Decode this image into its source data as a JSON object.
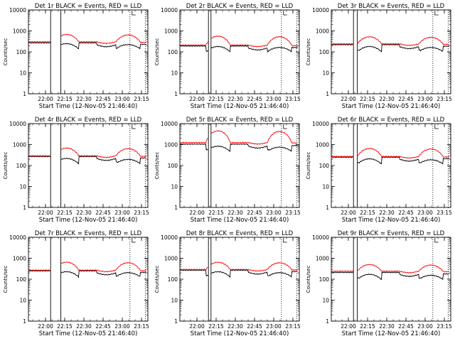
{
  "figure": {
    "background": "#ffffff",
    "event_color": "#000000",
    "lld_color": "#ff0000",
    "xlabel": "Start Time (12-Nov-05 21:46:40)",
    "ylabel": "Counts/sec"
  },
  "chart_data": [
    {
      "type": "line",
      "title": "Det 1r BLACK = Events, RED = LLD",
      "xlabel": "Start Time (12-Nov-05 21:46:40)",
      "ylabel": "Counts/sec",
      "yscale": "log",
      "ylim": [
        1,
        10000
      ],
      "xlim": [
        "21:46:40",
        "23:20:00"
      ],
      "x_ticks": [
        "22:00",
        "22:15",
        "22:30",
        "22:45",
        "23:00",
        "23:15"
      ],
      "y_ticks": [
        "1",
        "10",
        "100",
        "1000",
        "10000"
      ],
      "grid": false,
      "vlines_solid": [
        "22:04",
        "22:12"
      ],
      "vlines_dotted": [
        "23:06",
        "23:18"
      ],
      "series": [
        {
          "name": "BLACK = Events",
          "color": "#000000",
          "baseline": 270,
          "peak": 260
        },
        {
          "name": "RED = LLD",
          "color": "#ff0000",
          "baseline": 300,
          "peak": 680
        }
      ]
    },
    {
      "type": "line",
      "title": "Det 2r BLACK = Events, RED = LLD",
      "xlabel": "Start Time (12-Nov-05 21:46:40)",
      "ylabel": "Counts/sec",
      "yscale": "log",
      "ylim": [
        1,
        10000
      ],
      "xlim": [
        "21:46:40",
        "23:20:00"
      ],
      "x_ticks": [
        "22:00",
        "22:15",
        "22:30",
        "22:45",
        "23:00",
        "23:15"
      ],
      "y_ticks": [
        "1",
        "10",
        "100",
        "1000",
        "10000"
      ],
      "grid": false,
      "vlines_solid": [
        "22:09",
        "22:11"
      ],
      "vlines_dotted": [
        "23:06",
        "23:18"
      ],
      "series": [
        {
          "name": "BLACK = Events",
          "color": "#000000",
          "baseline": 190,
          "peak": 190
        },
        {
          "name": "RED = LLD",
          "color": "#ff0000",
          "baseline": 210,
          "peak": 560
        }
      ]
    },
    {
      "type": "line",
      "title": "Det 3r BLACK = Events, RED = LLD",
      "xlabel": "Start Time (12-Nov-05 21:46:40)",
      "ylabel": "Counts/sec",
      "yscale": "log",
      "ylim": [
        1,
        10000
      ],
      "xlim": [
        "21:46:40",
        "23:20:00"
      ],
      "x_ticks": [
        "22:00",
        "22:15",
        "22:30",
        "22:45",
        "23:00",
        "23:15"
      ],
      "y_ticks": [
        "1",
        "10",
        "100",
        "1000",
        "10000"
      ],
      "grid": false,
      "vlines_solid": [
        "22:04",
        "22:07"
      ],
      "vlines_dotted": [
        "23:06",
        "23:18"
      ],
      "series": [
        {
          "name": "BLACK = Events",
          "color": "#000000",
          "baseline": 220,
          "peak": 190
        },
        {
          "name": "RED = LLD",
          "color": "#ff0000",
          "baseline": 240,
          "peak": 520
        }
      ]
    },
    {
      "type": "line",
      "title": "Det 4r BLACK = Events, RED = LLD",
      "xlabel": "Start Time (12-Nov-05 21:46:40)",
      "ylabel": "Counts/sec",
      "yscale": "log",
      "ylim": [
        1,
        10000
      ],
      "xlim": [
        "21:46:40",
        "23:20:00"
      ],
      "x_ticks": [
        "22:00",
        "22:15",
        "22:30",
        "22:45",
        "23:00",
        "23:15"
      ],
      "y_ticks": [
        "1",
        "10",
        "100",
        "1000",
        "10000"
      ],
      "grid": false,
      "vlines_solid": [
        "22:04",
        "22:12"
      ],
      "vlines_dotted": [
        "23:06",
        "23:18"
      ],
      "series": [
        {
          "name": "BLACK = Events",
          "color": "#000000",
          "baseline": 270,
          "peak": 230
        },
        {
          "name": "RED = LLD",
          "color": "#ff0000",
          "baseline": 290,
          "peak": 680
        }
      ]
    },
    {
      "type": "line",
      "title": "Det 5r BLACK = Events, RED = LLD",
      "xlabel": "Start Time (12-Nov-05 21:46:40)",
      "ylabel": "Counts/sec",
      "yscale": "log",
      "ylim": [
        1,
        10000
      ],
      "xlim": [
        "21:46:40",
        "23:20:00"
      ],
      "x_ticks": [
        "22:00",
        "22:15",
        "22:30",
        "22:45",
        "23:00",
        "23:15"
      ],
      "y_ticks": [
        "1",
        "10",
        "100",
        "1000",
        "10000"
      ],
      "grid": false,
      "vlines_solid": [
        "22:09",
        "22:11"
      ],
      "vlines_dotted": [
        "23:06",
        "23:18"
      ],
      "series": [
        {
          "name": "BLACK = Events",
          "color": "#000000",
          "baseline": 1050,
          "peak": 880
        },
        {
          "name": "RED = LLD",
          "color": "#ff0000",
          "baseline": 1250,
          "peak": 4500
        }
      ]
    },
    {
      "type": "line",
      "title": "Det 6r BLACK = Events, RED = LLD",
      "xlabel": "Start Time (12-Nov-05 21:46:40)",
      "ylabel": "Counts/sec",
      "yscale": "log",
      "ylim": [
        1,
        10000
      ],
      "xlim": [
        "21:46:40",
        "23:20:00"
      ],
      "x_ticks": [
        "22:00",
        "22:15",
        "22:30",
        "22:45",
        "23:00",
        "23:15"
      ],
      "y_ticks": [
        "1",
        "10",
        "100",
        "1000",
        "10000"
      ],
      "grid": false,
      "vlines_solid": [
        "22:04",
        "22:07"
      ],
      "vlines_dotted": [
        "23:06",
        "23:18"
      ],
      "series": [
        {
          "name": "BLACK = Events",
          "color": "#000000",
          "baseline": 250,
          "peak": 220
        },
        {
          "name": "RED = LLD",
          "color": "#ff0000",
          "baseline": 270,
          "peak": 650
        }
      ]
    },
    {
      "type": "line",
      "title": "Det 7r BLACK = Events, RED = LLD",
      "xlabel": "Start Time (12-Nov-05 21:46:40)",
      "ylabel": "Counts/sec",
      "yscale": "log",
      "ylim": [
        1,
        10000
      ],
      "xlim": [
        "21:46:40",
        "23:20:00"
      ],
      "x_ticks": [
        "22:00",
        "22:15",
        "22:30",
        "22:45",
        "23:00",
        "23:15"
      ],
      "y_ticks": [
        "1",
        "10",
        "100",
        "1000",
        "10000"
      ],
      "grid": false,
      "vlines_solid": [
        "22:04",
        "22:12"
      ],
      "vlines_dotted": [
        "23:06",
        "23:18"
      ],
      "series": [
        {
          "name": "BLACK = Events",
          "color": "#000000",
          "baseline": 250,
          "peak": 240
        },
        {
          "name": "RED = LLD",
          "color": "#ff0000",
          "baseline": 270,
          "peak": 650
        }
      ]
    },
    {
      "type": "line",
      "title": "Det 8r BLACK = Events, RED = LLD",
      "xlabel": "Start Time (12-Nov-05 21:46:40)",
      "ylabel": "Counts/sec",
      "yscale": "log",
      "ylim": [
        1,
        10000
      ],
      "xlim": [
        "21:46:40",
        "23:20:00"
      ],
      "x_ticks": [
        "22:00",
        "22:15",
        "22:30",
        "22:45",
        "23:00",
        "23:15"
      ],
      "y_ticks": [
        "1",
        "10",
        "100",
        "1000",
        "10000"
      ],
      "grid": false,
      "vlines_solid": [
        "22:09",
        "22:11"
      ],
      "vlines_dotted": [
        "23:06",
        "23:18"
      ],
      "series": [
        {
          "name": "BLACK = Events",
          "color": "#000000",
          "baseline": 270,
          "peak": 240
        },
        {
          "name": "RED = LLD",
          "color": "#ff0000",
          "baseline": 290,
          "peak": 640
        }
      ]
    },
    {
      "type": "line",
      "title": "Det 9r BLACK = Events, RED = LLD",
      "xlabel": "Start Time (12-Nov-05 21:46:40)",
      "ylabel": "Counts/sec",
      "yscale": "log",
      "ylim": [
        1,
        10000
      ],
      "xlim": [
        "21:46:40",
        "23:20:00"
      ],
      "x_ticks": [
        "22:00",
        "22:15",
        "22:30",
        "22:45",
        "23:00",
        "23:15"
      ],
      "y_ticks": [
        "1",
        "10",
        "100",
        "1000",
        "10000"
      ],
      "grid": false,
      "vlines_solid": [
        "22:04",
        "22:07"
      ],
      "vlines_dotted": [
        "23:06",
        "23:18"
      ],
      "series": [
        {
          "name": "BLACK = Events",
          "color": "#000000",
          "baseline": 210,
          "peak": 180
        },
        {
          "name": "RED = LLD",
          "color": "#ff0000",
          "baseline": 240,
          "peak": 500
        }
      ]
    }
  ]
}
